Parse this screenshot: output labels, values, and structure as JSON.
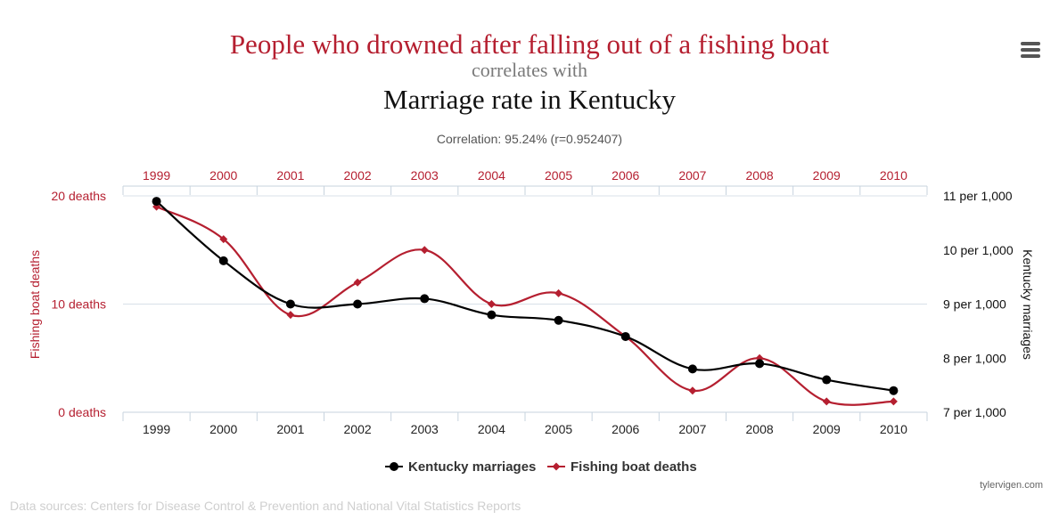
{
  "header": {
    "title": "People who drowned after falling out of a fishing boat",
    "subtitle": "correlates with",
    "second_title": "Marriage rate in Kentucky",
    "correlation": "Correlation: 95.24% (r=0.952407)"
  },
  "menu": {
    "icon": "hamburger-menu-icon"
  },
  "chart_data": {
    "type": "line",
    "categories": [
      "1999",
      "2000",
      "2001",
      "2002",
      "2003",
      "2004",
      "2005",
      "2006",
      "2007",
      "2008",
      "2009",
      "2010"
    ],
    "series": [
      {
        "name": "Kentucky marriages",
        "axis": "right",
        "color": "#000000",
        "marker": "circle",
        "values": [
          10.9,
          9.8,
          9.0,
          9.0,
          9.1,
          8.8,
          8.7,
          8.4,
          7.8,
          7.9,
          7.6,
          7.4
        ]
      },
      {
        "name": "Fishing boat deaths",
        "axis": "left",
        "color": "#b51f30",
        "marker": "diamond",
        "values": [
          19,
          16,
          9,
          12,
          15,
          10,
          11,
          7,
          2,
          5,
          1,
          1
        ]
      }
    ],
    "left_axis": {
      "label": "Fishing boat deaths",
      "ylim": [
        0,
        20
      ],
      "ticks": [
        {
          "value": 20,
          "label": "20 deaths"
        },
        {
          "value": 10,
          "label": "10 deaths"
        },
        {
          "value": 0,
          "label": "0 deaths"
        }
      ],
      "color": "#b51f30"
    },
    "right_axis": {
      "label": "Kentucky marriages",
      "ylim": [
        7,
        11
      ],
      "ticks": [
        {
          "value": 11,
          "label": "11 per 1,000"
        },
        {
          "value": 10,
          "label": "10 per 1,000"
        },
        {
          "value": 9,
          "label": "9 per 1,000"
        },
        {
          "value": 8,
          "label": "8 per 1,000"
        },
        {
          "value": 7,
          "label": "7 per 1,000"
        }
      ],
      "color": "#111111"
    },
    "grid": true,
    "legend_position": "bottom-center",
    "top_axis_color": "#b51f30",
    "bottom_axis_color": "#222222"
  },
  "footer": {
    "watermark": "tylervigen.com",
    "sources": "Data sources: Centers for Disease Control & Prevention and National Vital Statistics Reports"
  }
}
